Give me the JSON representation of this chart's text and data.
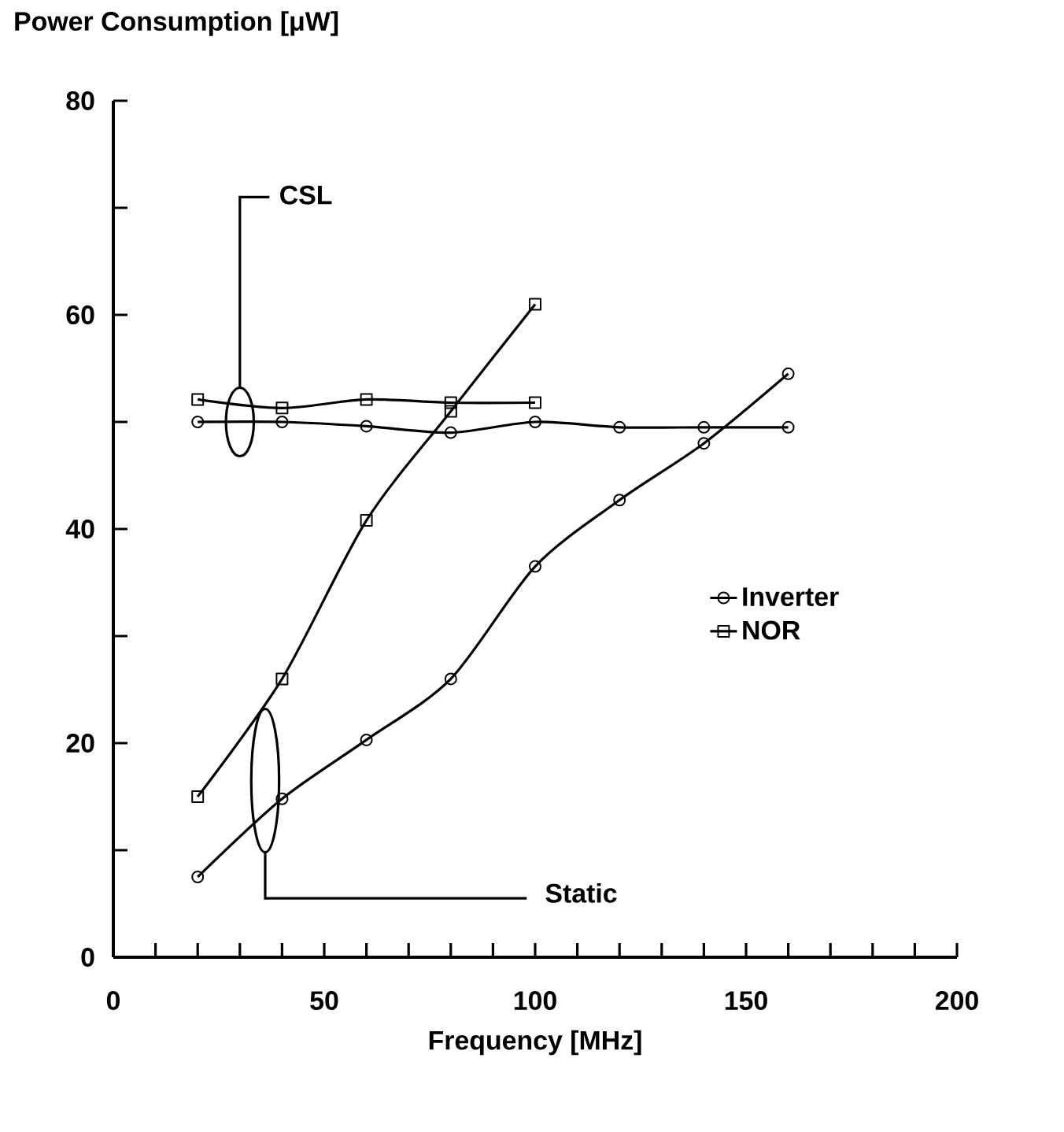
{
  "chart_data": {
    "type": "line",
    "title": "Power Consumption [μW]",
    "xlabel": "Frequency [MHz]",
    "xlim": [
      0,
      200
    ],
    "ylim": [
      0,
      80
    ],
    "xticks": [
      0,
      {
        "value": 10,
        "label": null
      },
      {
        "value": 20,
        "label": null
      },
      {
        "value": 30,
        "label": null
      },
      {
        "value": 40,
        "label": null
      },
      50,
      {
        "value": 60,
        "label": null
      },
      {
        "value": 70,
        "label": null
      },
      {
        "value": 80,
        "label": null
      },
      {
        "value": 90,
        "label": null
      },
      100,
      {
        "value": 110,
        "label": null
      },
      {
        "value": 120,
        "label": null
      },
      {
        "value": 130,
        "label": null
      },
      {
        "value": 140,
        "label": null
      },
      150,
      {
        "value": 160,
        "label": null
      },
      {
        "value": 170,
        "label": null
      },
      {
        "value": 180,
        "label": null
      },
      {
        "value": 190,
        "label": null
      },
      200
    ],
    "yticks": [
      0,
      {
        "value": 10,
        "label": null
      },
      20,
      {
        "value": 30,
        "label": null
      },
      40,
      {
        "value": 50,
        "label": null
      },
      60,
      {
        "value": 70,
        "label": null
      },
      80
    ],
    "grid": false,
    "legend": "right",
    "line_style": "solid",
    "series": [
      {
        "name": "Inverter",
        "color": "#000000",
        "marker": "circle",
        "x": [
          20,
          40,
          60,
          80,
          100,
          120,
          140,
          160
        ],
        "values": [
          7.5,
          14.8,
          20.3,
          26,
          36.5,
          42.7,
          48,
          54.5
        ]
      },
      {
        "name": "NOR",
        "color": "#000000",
        "marker": "square",
        "x": [
          20,
          40,
          60,
          80,
          100
        ],
        "values": [
          15,
          26,
          40.8,
          51,
          61
        ]
      },
      {
        "color": "#000000",
        "marker": "circle",
        "x": [
          20,
          40,
          60,
          80,
          100,
          120,
          140,
          160
        ],
        "values": [
          50,
          50,
          49.6,
          49,
          50,
          49.5,
          49.5,
          49.5
        ]
      },
      {
        "color": "#000000",
        "marker": "square",
        "x": [
          20,
          40,
          60,
          80,
          100
        ],
        "values": [
          52.1,
          51.3,
          52.1,
          51.8,
          51.8
        ]
      }
    ],
    "annotations": [
      "CSL",
      "Static"
    ]
  }
}
